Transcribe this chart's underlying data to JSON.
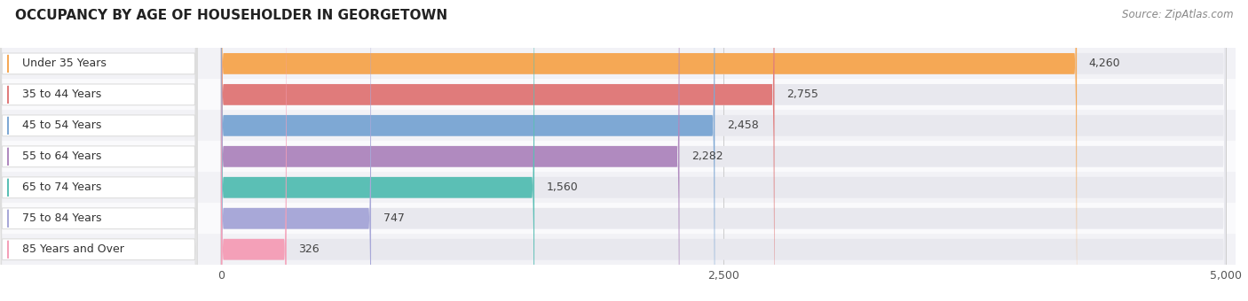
{
  "title": "OCCUPANCY BY AGE OF HOUSEHOLDER IN GEORGETOWN",
  "source": "Source: ZipAtlas.com",
  "categories": [
    "Under 35 Years",
    "35 to 44 Years",
    "45 to 54 Years",
    "55 to 64 Years",
    "65 to 74 Years",
    "75 to 84 Years",
    "85 Years and Over"
  ],
  "values": [
    4260,
    2755,
    2458,
    2282,
    1560,
    747,
    326
  ],
  "bar_colors": [
    "#F5A855",
    "#E07B7B",
    "#7EA8D4",
    "#B08ABF",
    "#5BBFB5",
    "#A8A8D8",
    "#F4A0B8"
  ],
  "bar_bg_color": "#E8E8EE",
  "row_bg_odd": "#F2F2F6",
  "row_bg_even": "#FAFAFC",
  "xlim_min": 0,
  "xlim_max": 5000,
  "xticks": [
    0,
    2500,
    5000
  ],
  "bar_height": 0.68,
  "title_fontsize": 11,
  "label_fontsize": 9,
  "value_fontsize": 9,
  "source_fontsize": 8.5,
  "background_color": "#FFFFFF"
}
